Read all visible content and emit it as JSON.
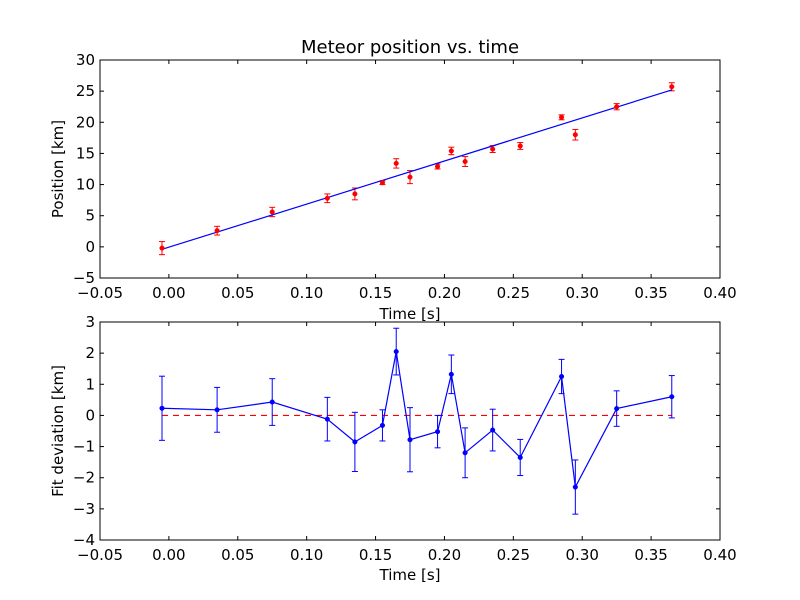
{
  "chart_data": [
    {
      "type": "scatter",
      "title": "Meteor position vs. time",
      "xlabel": "Time [s]",
      "ylabel": "Position [km]",
      "xlim": [
        -0.05,
        0.4
      ],
      "ylim": [
        -5,
        30
      ],
      "xticks": [
        "−0.05",
        "0.00",
        "0.05",
        "0.10",
        "0.15",
        "0.20",
        "0.25",
        "0.30",
        "0.35",
        "0.40"
      ],
      "yticks": [
        "−5",
        "0",
        "5",
        "10",
        "15",
        "20",
        "25",
        "30"
      ],
      "grid": false,
      "colors": {
        "points": "#ff0000",
        "fit": "#0000ff"
      },
      "series": [
        {
          "kind": "errorbar-points",
          "x": [
            -0.005,
            0.035,
            0.075,
            0.115,
            0.135,
            0.155,
            0.165,
            0.175,
            0.195,
            0.205,
            0.215,
            0.235,
            0.255,
            0.285,
            0.295,
            0.325,
            0.365
          ],
          "y": [
            -0.2,
            2.6,
            5.6,
            7.8,
            8.5,
            10.3,
            13.4,
            11.2,
            12.9,
            15.4,
            13.7,
            15.7,
            16.2,
            20.8,
            18.0,
            22.5,
            25.7
          ],
          "yerr": [
            1.05,
            0.7,
            0.75,
            0.7,
            0.95,
            0.3,
            0.75,
            1.05,
            0.4,
            0.6,
            0.8,
            0.55,
            0.55,
            0.4,
            0.85,
            0.5,
            0.65
          ]
        },
        {
          "kind": "fit-line",
          "x": [
            -0.005,
            0.365
          ],
          "y": [
            -0.4,
            25.2
          ]
        }
      ]
    },
    {
      "type": "line",
      "xlabel": "Time [s]",
      "ylabel": "Fit deviation [km]",
      "xlim": [
        -0.05,
        0.4
      ],
      "ylim": [
        -4,
        3
      ],
      "xticks": [
        "−0.05",
        "0.00",
        "0.05",
        "0.10",
        "0.15",
        "0.20",
        "0.25",
        "0.30",
        "0.35",
        "0.40"
      ],
      "yticks": [
        "−4",
        "−3",
        "−2",
        "−1",
        "0",
        "1",
        "2",
        "3"
      ],
      "grid": false,
      "colors": {
        "line": "#0000ff",
        "zero": "#ff0000"
      },
      "reference_line": {
        "y": 0,
        "style": "dashed"
      },
      "series": [
        {
          "x": [
            -0.005,
            0.035,
            0.075,
            0.115,
            0.135,
            0.155,
            0.165,
            0.175,
            0.195,
            0.205,
            0.215,
            0.235,
            0.255,
            0.285,
            0.295,
            0.325,
            0.365
          ],
          "y": [
            0.23,
            0.18,
            0.43,
            -0.12,
            -0.85,
            -0.32,
            2.05,
            -0.78,
            -0.52,
            1.32,
            -1.2,
            -0.47,
            -1.35,
            1.25,
            -2.3,
            0.22,
            0.6
          ],
          "yerr": [
            1.03,
            0.72,
            0.75,
            0.7,
            0.95,
            0.5,
            0.75,
            1.03,
            0.52,
            0.62,
            0.8,
            0.67,
            0.58,
            0.55,
            0.87,
            0.57,
            0.68
          ]
        }
      ]
    }
  ]
}
